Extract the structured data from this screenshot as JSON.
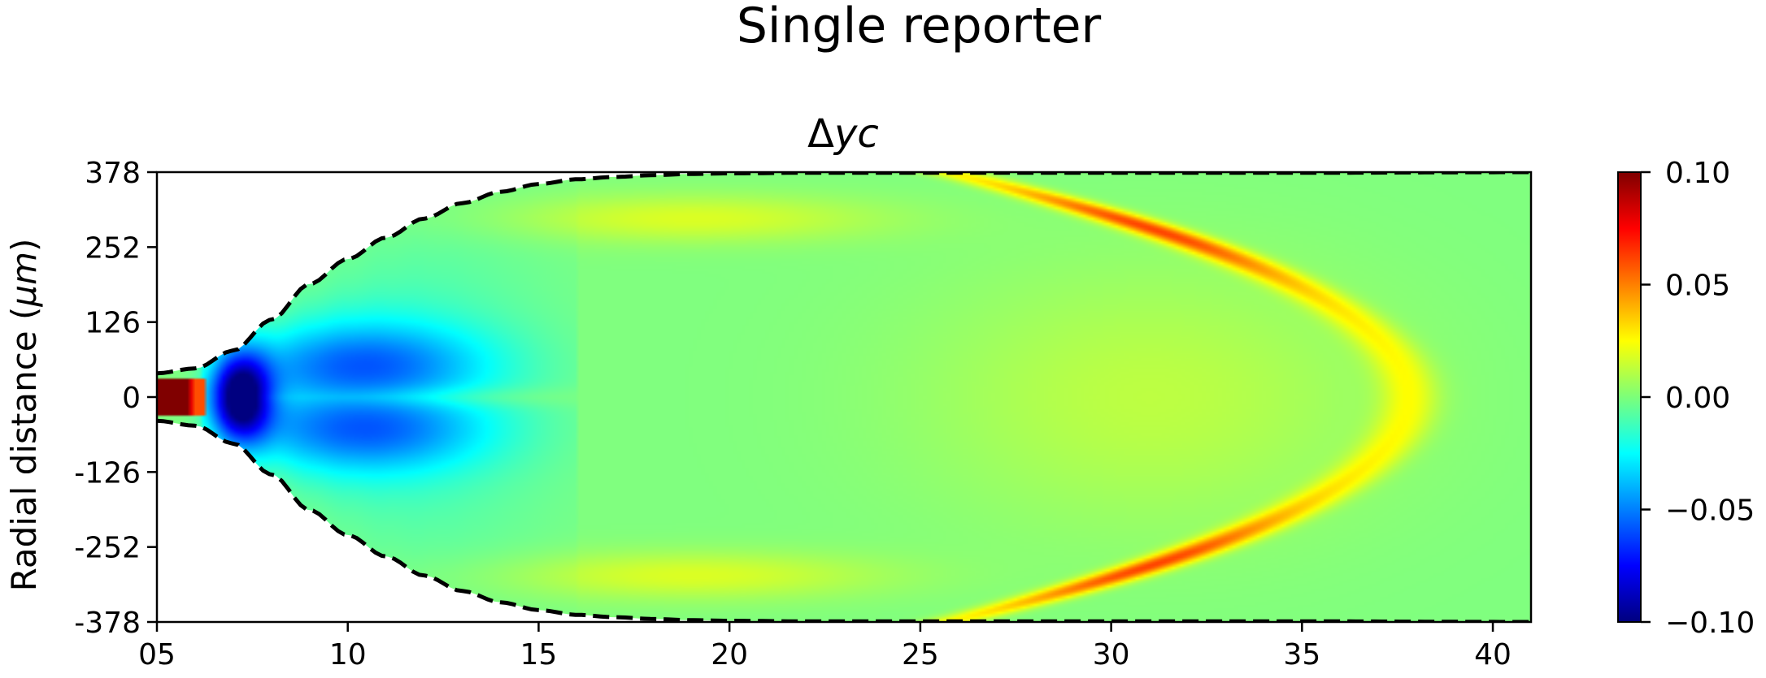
{
  "figure": {
    "suptitle": "Single reporter"
  },
  "chart_data": {
    "type": "heatmap",
    "title": "Δyc",
    "title_prefix": "Δ",
    "title_math": "yc",
    "xlabel": "",
    "ylabel": "Radial distance (μm)",
    "ylabel_parts": {
      "text": "Radial distance (",
      "math": "μm",
      "close": ")"
    },
    "xlim": [
      5,
      41
    ],
    "ylim": [
      -378,
      378
    ],
    "x_ticks": [
      5,
      10,
      15,
      20,
      25,
      30,
      35,
      40
    ],
    "x_tick_labels": [
      "05",
      "10",
      "15",
      "20",
      "25",
      "30",
      "35",
      "40"
    ],
    "y_ticks": [
      378,
      252,
      126,
      0,
      -126,
      -252,
      -378
    ],
    "y_tick_labels": [
      "378",
      "252",
      "126",
      "0",
      "-126",
      "-252",
      "-378"
    ],
    "colormap": "jet",
    "clim": [
      -0.1,
      0.1
    ],
    "colorbar_ticks": [
      0.1,
      0.05,
      0.0,
      -0.05,
      -0.1
    ],
    "colorbar_tick_labels": [
      "0.10",
      "0.05",
      "0.00",
      "−0.05",
      "−0.10"
    ],
    "background_value": 0.0,
    "boundary": {
      "style": "dashed",
      "color": "#000000",
      "x": [
        5,
        6,
        7,
        8,
        9,
        10,
        11,
        12,
        13,
        14,
        15,
        16,
        17,
        18,
        19,
        20,
        22,
        25,
        30,
        35,
        41
      ],
      "half_width": [
        40,
        48,
        78,
        130,
        190,
        232,
        268,
        300,
        326,
        345,
        358,
        366,
        370,
        373,
        375,
        376,
        377,
        377,
        377,
        377,
        378
      ]
    },
    "features": [
      {
        "name": "inlet-high",
        "x_range": [
          5,
          5.8
        ],
        "y_range": [
          -30,
          30
        ],
        "value": 0.1
      },
      {
        "name": "inlet-mid",
        "x_range": [
          5.8,
          6.0
        ],
        "y_range": [
          -30,
          30
        ],
        "value": 0.08
      },
      {
        "name": "inlet-edge",
        "x_range": [
          6.0,
          6.2
        ],
        "y_range": [
          -30,
          30
        ],
        "value": 0.06
      },
      {
        "name": "core-minimum",
        "x_center": 7.2,
        "y_center": 0,
        "value": -0.1
      },
      {
        "name": "depleted-lobes",
        "x_range": [
          8,
          14
        ],
        "y_center": 60,
        "value": -0.06
      },
      {
        "name": "parabolic-front",
        "shape": "x_tip - a*y^2",
        "x_tip": 37.8,
        "a_coeff": 8.43e-05,
        "peak_value": 0.06,
        "peak_region_x": [
          28,
          34
        ]
      }
    ]
  }
}
